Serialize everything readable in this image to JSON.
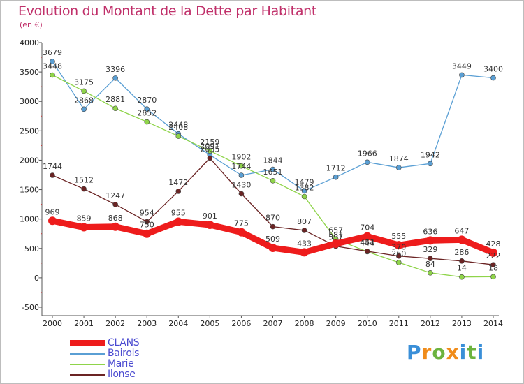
{
  "title": "Evolution du Montant de la Dette par Habitant",
  "subtitle": "(en €)",
  "logo": {
    "text": "Proxiti",
    "colors": [
      "#3a8fd8",
      "#f08c1a",
      "#6cb33e",
      "#f08c1a",
      "#3a8fd8",
      "#6cb33e",
      "#3a8fd8"
    ]
  },
  "chart_data": {
    "type": "line",
    "x": [
      "2000",
      "2001",
      "2002",
      "2003",
      "2004",
      "2005",
      "2006",
      "2007",
      "2008",
      "2009",
      "2010",
      "2011",
      "2012",
      "2013",
      "2014"
    ],
    "ylim": [
      -500,
      4000
    ],
    "yticks": [
      -500,
      0,
      500,
      1000,
      1500,
      2000,
      2500,
      3000,
      3500,
      4000
    ],
    "grid": false,
    "legend_position": "bottom-left",
    "series": [
      {
        "name": "CLANS",
        "color": "#ee1c1c",
        "values": [
          969,
          859,
          868,
          750,
          955,
          901,
          775,
          509,
          433,
          581,
          704,
          555,
          636,
          647,
          428
        ]
      },
      {
        "name": "Bairols",
        "color": "#5a9fd4",
        "values": [
          3679,
          2868,
          3396,
          2870,
          2448,
          2091,
          1744,
          1844,
          1479,
          1712,
          1966,
          1874,
          1942,
          3449,
          3400
        ]
      },
      {
        "name": "Marie",
        "color": "#8fd44a",
        "values": [
          3448,
          3175,
          2881,
          2652,
          2408,
          2159,
          1902,
          1651,
          1382,
          657,
          444,
          260,
          84,
          14,
          18
        ]
      },
      {
        "name": "Ilonse",
        "color": "#6b2424",
        "values": [
          1744,
          1512,
          1247,
          954,
          1472,
          2035,
          1430,
          870,
          807,
          537,
          451,
          370,
          329,
          286,
          222
        ]
      }
    ]
  }
}
